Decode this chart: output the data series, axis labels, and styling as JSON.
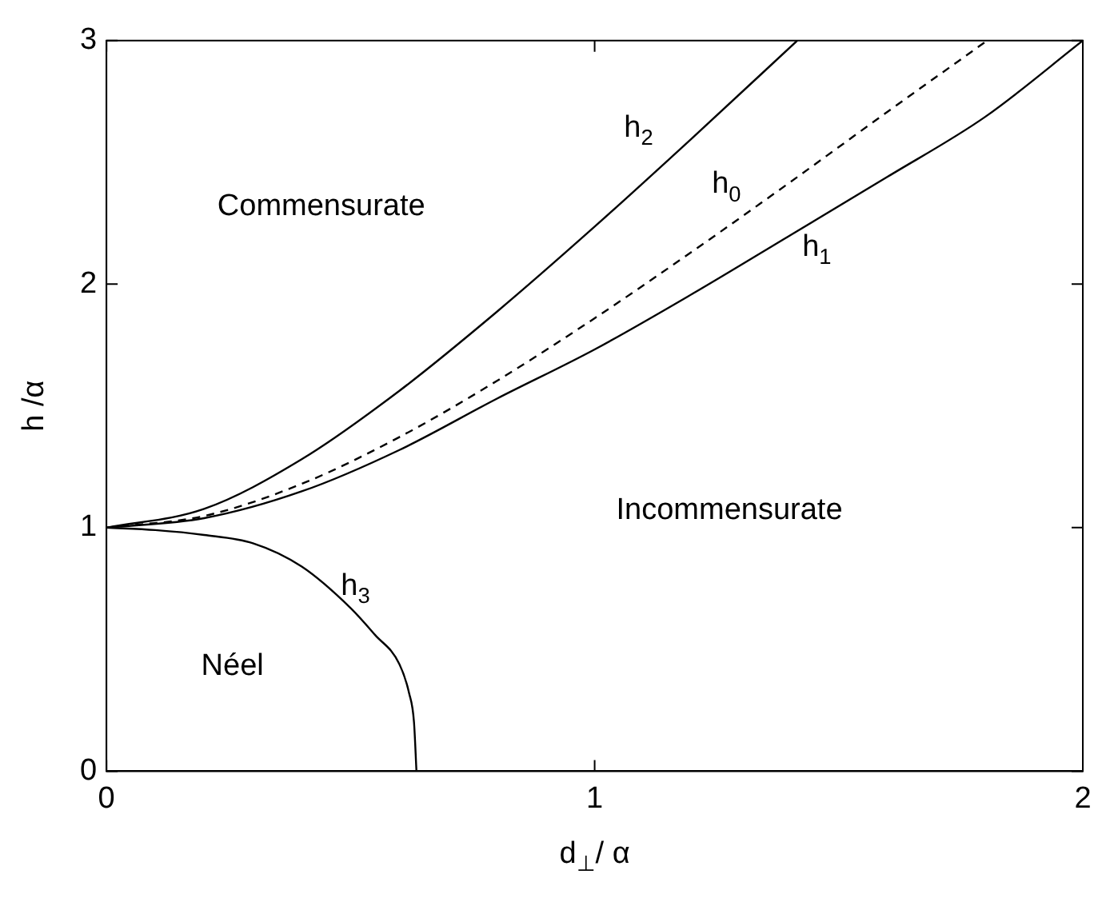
{
  "chart_data": {
    "type": "line",
    "xlabel": "d$_{⊥}$/ α",
    "ylabel": "h /α",
    "xlim": [
      0,
      2
    ],
    "ylim": [
      0,
      3
    ],
    "xticks": [
      0,
      1,
      2
    ],
    "yticks": [
      0,
      1,
      2,
      3
    ],
    "grid": false,
    "legend": false,
    "marker": "none",
    "series": [
      {
        "color": "#000000",
        "line_style": "solid",
        "x": [
          0,
          0.2,
          0.4,
          0.6,
          0.8,
          1.0,
          1.2,
          1.415
        ],
        "values": [
          1,
          1.077,
          1.281,
          1.562,
          1.887,
          2.236,
          2.6,
          3.0
        ]
      },
      {
        "color": "#000000",
        "line_style": "dashed",
        "x": [
          0,
          0.2,
          0.4,
          0.6,
          0.8,
          1.0,
          1.2,
          1.4,
          1.6,
          1.804
        ],
        "values": [
          1,
          1.048,
          1.18,
          1.372,
          1.603,
          1.86,
          2.134,
          2.418,
          2.708,
          3.0
        ]
      },
      {
        "color": "#000000",
        "line_style": "solid",
        "x": [
          0,
          0.2,
          0.4,
          0.6,
          0.8,
          1.0,
          1.2,
          1.4,
          1.6,
          1.8,
          2.0
        ],
        "values": [
          1,
          1.039,
          1.149,
          1.319,
          1.53,
          1.732,
          1.96,
          2.2,
          2.441,
          2.687,
          3.0
        ]
      },
      {
        "color": "#000000",
        "line_style": "solid",
        "x": [
          0,
          0.1,
          0.2,
          0.3,
          0.4,
          0.5,
          0.55,
          0.6,
          0.62,
          0.63,
          0.635
        ],
        "values": [
          1,
          0.99,
          0.97,
          0.936,
          0.84,
          0.67,
          0.56,
          0.44,
          0.32,
          0.2,
          0
        ]
      }
    ],
    "annotations": [
      "h$_{2}$",
      "h$_{0}$",
      "h$_{1}$",
      "h$_{3}$",
      "Commensurate",
      "Incommensurate",
      "Néel"
    ]
  }
}
